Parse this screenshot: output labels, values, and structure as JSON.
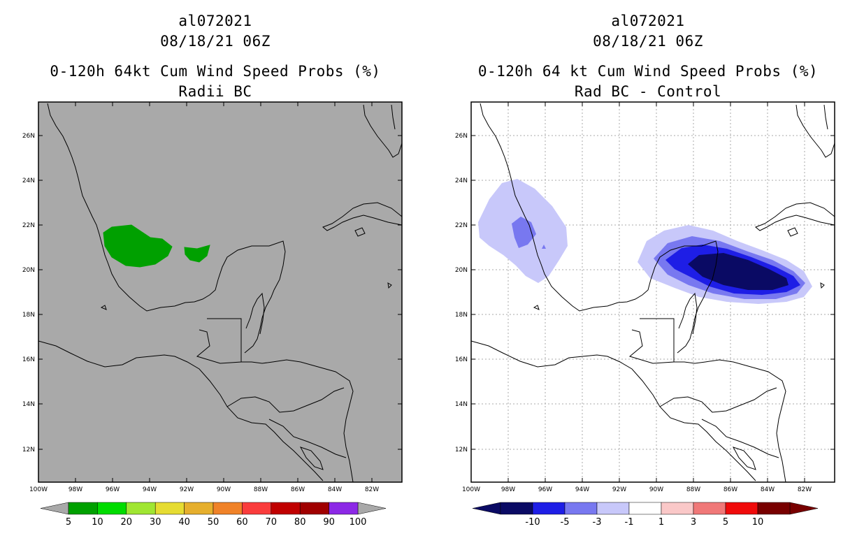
{
  "left": {
    "title_lines": [
      "al072021",
      "08/18/21 06Z",
      "0-120h 64kt Cum Wind Speed Probs (%)",
      "Radii BC"
    ],
    "background_color": "#a9a9a9",
    "feature_color": "#00a000",
    "colorbar": {
      "colors": [
        "#00a000",
        "#00dc00",
        "#a0e632",
        "#e6dc32",
        "#e6af2d",
        "#f08228",
        "#fa3c3c",
        "#c00000",
        "#a00000",
        "#8c28e6"
      ],
      "labels": [
        "5",
        "10",
        "20",
        "30",
        "40",
        "50",
        "60",
        "70",
        "80",
        "90",
        "100"
      ]
    }
  },
  "right": {
    "title_lines": [
      "al072021",
      "08/18/21 06Z",
      "0-120h 64 kt Cum Wind Speed Probs (%)",
      "Rad BC - Control"
    ],
    "background_color": "#ffffff",
    "shade_colors": [
      "#c8c8fa",
      "#7878f0",
      "#1e1ee6",
      "#0a0a64"
    ],
    "colorbar": {
      "colors": [
        "#0a0a64",
        "#1e1ee6",
        "#7878f0",
        "#c8c8fa",
        "#ffffff",
        "#fac8c8",
        "#f07878",
        "#f00a0a",
        "#780000"
      ],
      "labels": [
        "-10",
        "-5",
        "-3",
        "-1",
        "1",
        "3",
        "5",
        "10"
      ]
    }
  },
  "axes": {
    "lat_labels": [
      "26N",
      "24N",
      "22N",
      "20N",
      "18N",
      "16N",
      "14N",
      "12N"
    ],
    "lon_labels": [
      "100W",
      "98W",
      "96W",
      "94W",
      "92W",
      "90W",
      "88W",
      "86W",
      "84W",
      "82W"
    ]
  }
}
